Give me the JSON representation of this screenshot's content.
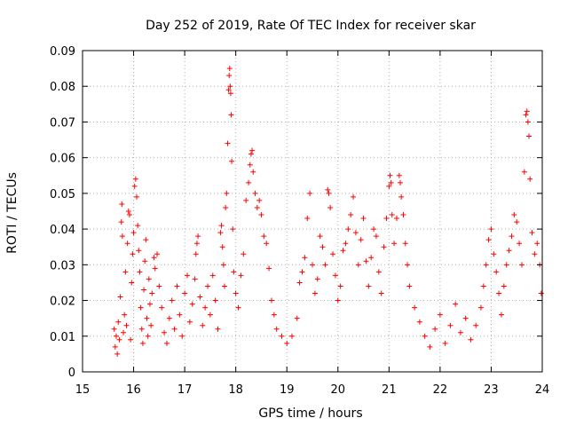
{
  "chart_data": {
    "type": "scatter",
    "title": "Day 252 of 2019, Rate Of TEC Index for receiver skar",
    "xlabel": "GPS time / hours",
    "ylabel": "ROTI / TECUs",
    "xlim": [
      15,
      24
    ],
    "ylim": [
      0,
      0.09
    ],
    "x_ticks": [
      15,
      16,
      17,
      18,
      19,
      20,
      21,
      22,
      23,
      24
    ],
    "x_tick_labels": [
      "15",
      "16",
      "17",
      "18",
      "19",
      "20",
      "21",
      "22",
      "23",
      "24"
    ],
    "y_ticks": [
      0,
      0.01,
      0.02,
      0.03,
      0.04,
      0.05,
      0.06,
      0.07,
      0.08,
      0.09
    ],
    "y_tick_labels": [
      "0",
      "0.01",
      "0.02",
      "0.03",
      "0.04",
      "0.05",
      "0.06",
      "0.07",
      "0.08",
      "0.09"
    ],
    "grid": true,
    "marker": "+",
    "color": "#ff0000",
    "series": [
      {
        "name": "ROTI",
        "points": [
          [
            15.62,
            0.012
          ],
          [
            15.64,
            0.007
          ],
          [
            15.66,
            0.01
          ],
          [
            15.68,
            0.005
          ],
          [
            15.7,
            0.014
          ],
          [
            15.72,
            0.009
          ],
          [
            15.74,
            0.021
          ],
          [
            15.76,
            0.042
          ],
          [
            15.77,
            0.047
          ],
          [
            15.78,
            0.038
          ],
          [
            15.8,
            0.011
          ],
          [
            15.82,
            0.016
          ],
          [
            15.84,
            0.028
          ],
          [
            15.86,
            0.013
          ],
          [
            15.88,
            0.036
          ],
          [
            15.9,
            0.045
          ],
          [
            15.92,
            0.044
          ],
          [
            15.94,
            0.009
          ],
          [
            15.96,
            0.025
          ],
          [
            15.98,
            0.033
          ],
          [
            16.0,
            0.039
          ],
          [
            16.02,
            0.052
          ],
          [
            16.04,
            0.054
          ],
          [
            16.06,
            0.049
          ],
          [
            16.08,
            0.041
          ],
          [
            16.1,
            0.034
          ],
          [
            16.12,
            0.028
          ],
          [
            16.14,
            0.018
          ],
          [
            16.16,
            0.012
          ],
          [
            16.18,
            0.008
          ],
          [
            16.2,
            0.023
          ],
          [
            16.22,
            0.031
          ],
          [
            16.24,
            0.037
          ],
          [
            16.26,
            0.015
          ],
          [
            16.28,
            0.01
          ],
          [
            16.3,
            0.026
          ],
          [
            16.32,
            0.019
          ],
          [
            16.34,
            0.013
          ],
          [
            16.36,
            0.022
          ],
          [
            16.4,
            0.032
          ],
          [
            16.42,
            0.029
          ],
          [
            16.46,
            0.033
          ],
          [
            16.5,
            0.024
          ],
          [
            16.55,
            0.018
          ],
          [
            16.6,
            0.011
          ],
          [
            16.65,
            0.008
          ],
          [
            16.7,
            0.015
          ],
          [
            16.75,
            0.02
          ],
          [
            16.8,
            0.012
          ],
          [
            16.85,
            0.024
          ],
          [
            16.9,
            0.016
          ],
          [
            16.95,
            0.01
          ],
          [
            17.0,
            0.022
          ],
          [
            17.05,
            0.027
          ],
          [
            17.1,
            0.014
          ],
          [
            17.15,
            0.019
          ],
          [
            17.2,
            0.026
          ],
          [
            17.22,
            0.033
          ],
          [
            17.24,
            0.036
          ],
          [
            17.26,
            0.038
          ],
          [
            17.3,
            0.021
          ],
          [
            17.35,
            0.013
          ],
          [
            17.4,
            0.018
          ],
          [
            17.45,
            0.024
          ],
          [
            17.5,
            0.016
          ],
          [
            17.55,
            0.027
          ],
          [
            17.6,
            0.02
          ],
          [
            17.65,
            0.012
          ],
          [
            17.7,
            0.039
          ],
          [
            17.72,
            0.041
          ],
          [
            17.74,
            0.035
          ],
          [
            17.76,
            0.03
          ],
          [
            17.78,
            0.024
          ],
          [
            17.8,
            0.046
          ],
          [
            17.82,
            0.05
          ],
          [
            17.84,
            0.064
          ],
          [
            17.86,
            0.079
          ],
          [
            17.87,
            0.083
          ],
          [
            17.88,
            0.085
          ],
          [
            17.89,
            0.08
          ],
          [
            17.9,
            0.078
          ],
          [
            17.91,
            0.072
          ],
          [
            17.92,
            0.059
          ],
          [
            17.94,
            0.04
          ],
          [
            17.96,
            0.028
          ],
          [
            18.0,
            0.022
          ],
          [
            18.05,
            0.018
          ],
          [
            18.1,
            0.027
          ],
          [
            18.15,
            0.033
          ],
          [
            18.2,
            0.048
          ],
          [
            18.25,
            0.053
          ],
          [
            18.28,
            0.058
          ],
          [
            18.3,
            0.061
          ],
          [
            18.32,
            0.062
          ],
          [
            18.34,
            0.056
          ],
          [
            18.38,
            0.05
          ],
          [
            18.42,
            0.046
          ],
          [
            18.46,
            0.048
          ],
          [
            18.5,
            0.044
          ],
          [
            18.55,
            0.038
          ],
          [
            18.6,
            0.036
          ],
          [
            18.65,
            0.029
          ],
          [
            18.7,
            0.02
          ],
          [
            18.75,
            0.016
          ],
          [
            18.8,
            0.012
          ],
          [
            18.9,
            0.01
          ],
          [
            19.0,
            0.008
          ],
          [
            19.1,
            0.01
          ],
          [
            19.2,
            0.015
          ],
          [
            19.25,
            0.025
          ],
          [
            19.3,
            0.028
          ],
          [
            19.35,
            0.032
          ],
          [
            19.4,
            0.043
          ],
          [
            19.45,
            0.05
          ],
          [
            19.5,
            0.03
          ],
          [
            19.55,
            0.022
          ],
          [
            19.6,
            0.026
          ],
          [
            19.65,
            0.038
          ],
          [
            19.7,
            0.035
          ],
          [
            19.75,
            0.03
          ],
          [
            19.8,
            0.051
          ],
          [
            19.82,
            0.05
          ],
          [
            19.85,
            0.046
          ],
          [
            19.9,
            0.033
          ],
          [
            19.95,
            0.027
          ],
          [
            20.0,
            0.02
          ],
          [
            20.05,
            0.024
          ],
          [
            20.1,
            0.034
          ],
          [
            20.15,
            0.036
          ],
          [
            20.2,
            0.04
          ],
          [
            20.25,
            0.044
          ],
          [
            20.3,
            0.049
          ],
          [
            20.35,
            0.039
          ],
          [
            20.4,
            0.03
          ],
          [
            20.45,
            0.037
          ],
          [
            20.5,
            0.043
          ],
          [
            20.55,
            0.031
          ],
          [
            20.6,
            0.024
          ],
          [
            20.65,
            0.032
          ],
          [
            20.7,
            0.04
          ],
          [
            20.75,
            0.038
          ],
          [
            20.8,
            0.028
          ],
          [
            20.85,
            0.022
          ],
          [
            20.9,
            0.035
          ],
          [
            20.95,
            0.043
          ],
          [
            21.0,
            0.052
          ],
          [
            21.02,
            0.055
          ],
          [
            21.04,
            0.053
          ],
          [
            21.06,
            0.044
          ],
          [
            21.1,
            0.036
          ],
          [
            21.15,
            0.043
          ],
          [
            21.2,
            0.055
          ],
          [
            21.22,
            0.053
          ],
          [
            21.24,
            0.049
          ],
          [
            21.28,
            0.044
          ],
          [
            21.32,
            0.036
          ],
          [
            21.36,
            0.03
          ],
          [
            21.4,
            0.024
          ],
          [
            21.5,
            0.018
          ],
          [
            21.6,
            0.014
          ],
          [
            21.7,
            0.01
          ],
          [
            21.8,
            0.007
          ],
          [
            21.9,
            0.012
          ],
          [
            22.0,
            0.016
          ],
          [
            22.1,
            0.008
          ],
          [
            22.2,
            0.013
          ],
          [
            22.3,
            0.019
          ],
          [
            22.4,
            0.011
          ],
          [
            22.5,
            0.015
          ],
          [
            22.6,
            0.009
          ],
          [
            22.7,
            0.013
          ],
          [
            22.8,
            0.018
          ],
          [
            22.85,
            0.024
          ],
          [
            22.9,
            0.03
          ],
          [
            22.95,
            0.037
          ],
          [
            23.0,
            0.04
          ],
          [
            23.05,
            0.033
          ],
          [
            23.1,
            0.028
          ],
          [
            23.15,
            0.022
          ],
          [
            23.2,
            0.016
          ],
          [
            23.25,
            0.024
          ],
          [
            23.3,
            0.03
          ],
          [
            23.35,
            0.034
          ],
          [
            23.4,
            0.038
          ],
          [
            23.45,
            0.044
          ],
          [
            23.5,
            0.042
          ],
          [
            23.55,
            0.036
          ],
          [
            23.6,
            0.03
          ],
          [
            23.65,
            0.056
          ],
          [
            23.68,
            0.072
          ],
          [
            23.7,
            0.073
          ],
          [
            23.72,
            0.07
          ],
          [
            23.74,
            0.066
          ],
          [
            23.76,
            0.054
          ],
          [
            23.8,
            0.039
          ],
          [
            23.85,
            0.033
          ],
          [
            23.9,
            0.036
          ],
          [
            23.95,
            0.03
          ],
          [
            23.98,
            0.022
          ]
        ]
      }
    ]
  }
}
